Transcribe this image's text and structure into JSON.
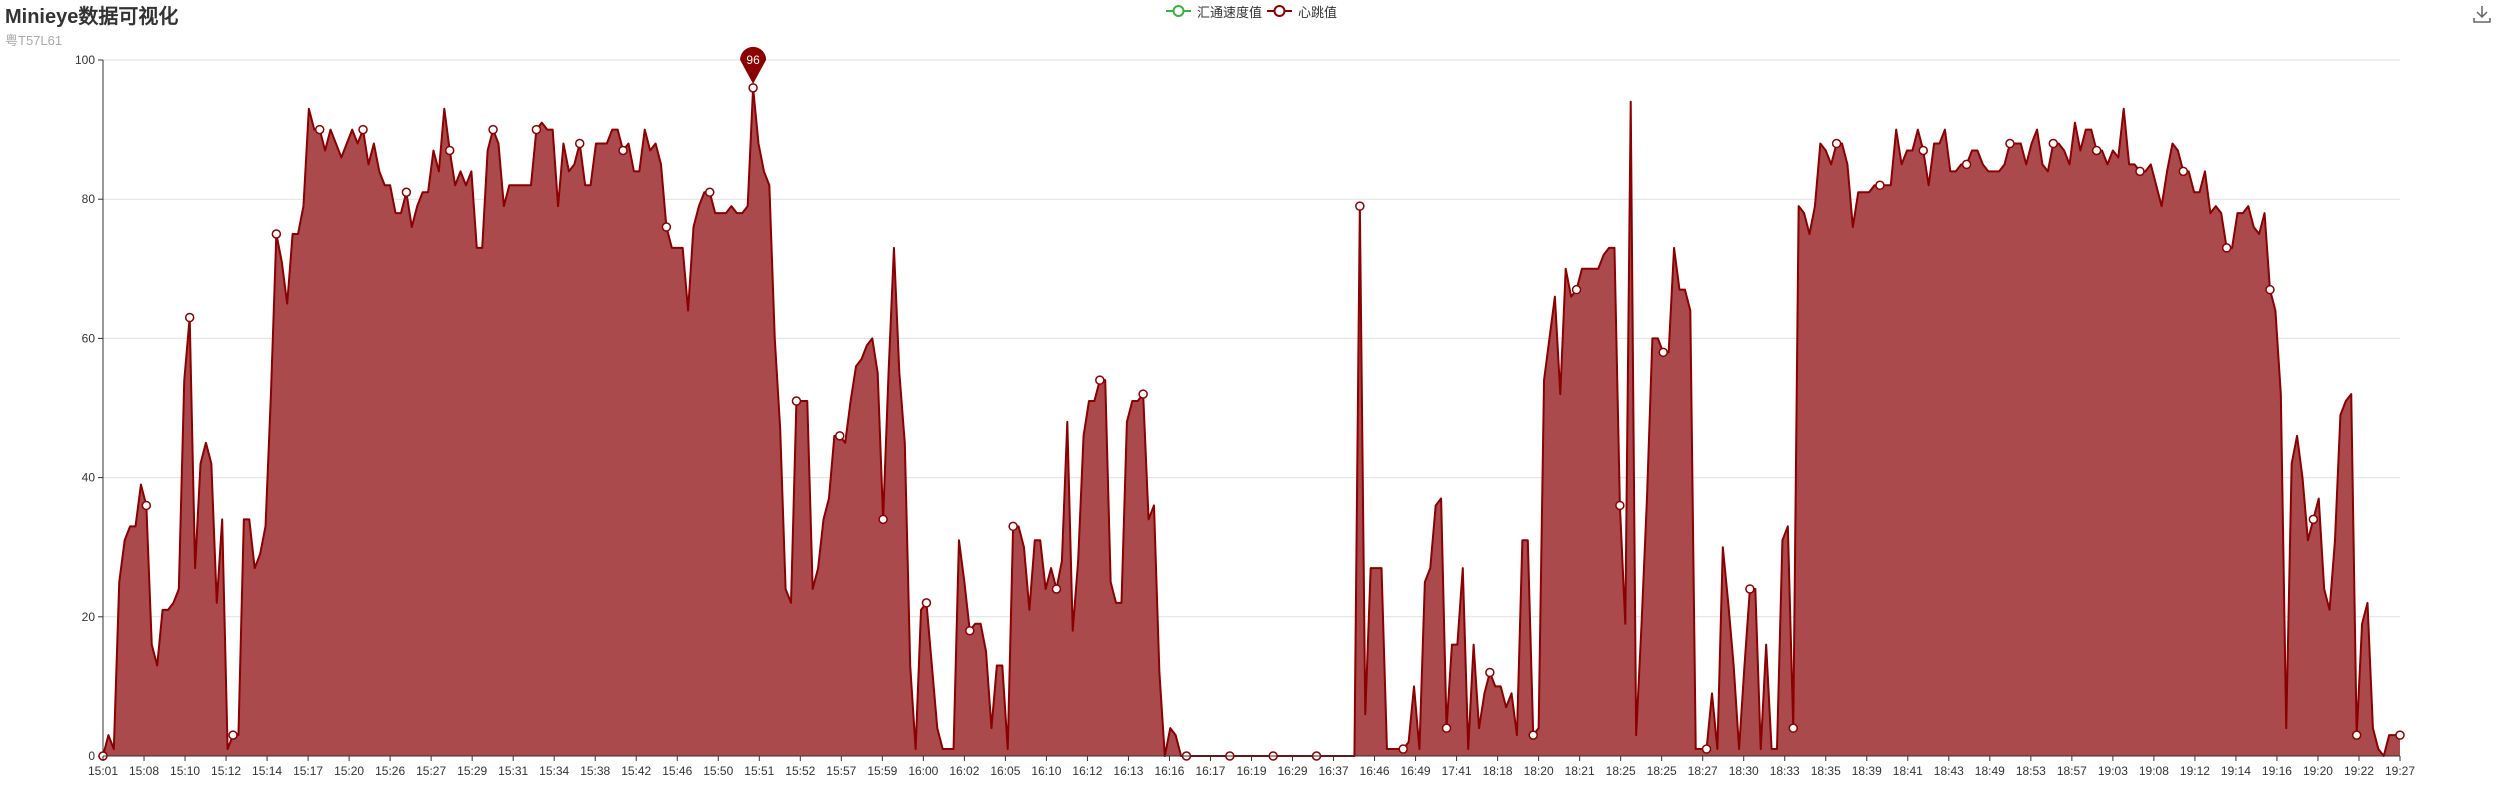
{
  "header": {
    "title": "Minieye数据可视化",
    "subtitle": "粤T57L61"
  },
  "toolbar": {
    "download_icon": "download-icon"
  },
  "chart_data": {
    "type": "area",
    "title": "Minieye数据可视化",
    "subtitle": "粤T57L61",
    "xlabel": "",
    "ylabel": "",
    "ylim": [
      0,
      100
    ],
    "yticks": [
      0,
      20,
      40,
      60,
      80,
      100
    ],
    "grid": true,
    "legend_position": "top-center",
    "x_tick_labels": [
      "15:01",
      "15:08",
      "15:10",
      "15:12",
      "15:14",
      "15:17",
      "15:20",
      "15:26",
      "15:27",
      "15:29",
      "15:31",
      "15:34",
      "15:38",
      "15:42",
      "15:46",
      "15:50",
      "15:51",
      "15:52",
      "15:57",
      "15:59",
      "16:00",
      "16:02",
      "16:05",
      "16:10",
      "16:12",
      "16:13",
      "16:16",
      "16:17",
      "16:19",
      "16:29",
      "16:37",
      "16:46",
      "16:49",
      "17:41",
      "18:18",
      "18:20",
      "18:21",
      "18:25",
      "18:25",
      "18:27",
      "18:30",
      "18:33",
      "18:35",
      "18:39",
      "18:41",
      "18:43",
      "18:49",
      "18:53",
      "18:57",
      "19:03",
      "19:08",
      "19:12",
      "19:14",
      "19:16",
      "19:20",
      "19:22",
      "19:27"
    ],
    "colors": {
      "heart": "#8b0000",
      "heart_fill": "#aa4a4c",
      "speed": "#3cb043"
    },
    "series": [
      {
        "name": "汇通速度值",
        "type": "line",
        "values": []
      },
      {
        "name": "心跳值",
        "type": "area",
        "values": [
          0,
          3,
          1,
          25,
          31,
          33,
          33,
          39,
          36,
          16,
          13,
          21,
          21,
          22,
          24,
          54,
          63,
          27,
          42,
          45,
          42,
          22,
          34,
          1,
          3,
          3,
          34,
          34,
          27,
          29,
          33,
          52,
          75,
          71,
          65,
          75,
          75,
          79,
          93,
          90,
          90,
          87,
          90,
          88,
          86,
          88,
          90,
          88,
          90,
          85,
          88,
          84,
          82,
          82,
          78,
          78,
          81,
          76,
          79,
          81,
          81,
          87,
          84,
          93,
          87,
          82,
          84,
          82,
          84,
          73,
          73,
          87,
          90,
          88,
          79,
          82,
          82,
          82,
          82,
          82,
          90,
          91,
          90,
          90,
          79,
          88,
          84,
          85,
          88,
          82,
          82,
          88,
          88,
          88,
          90,
          90,
          87,
          88,
          84,
          84,
          90,
          87,
          88,
          85,
          76,
          73,
          73,
          73,
          64,
          76,
          79,
          81,
          81,
          78,
          78,
          78,
          79,
          78,
          78,
          79,
          96,
          88,
          84,
          82,
          60,
          47,
          24,
          22,
          51,
          51,
          51,
          24,
          27,
          34,
          37,
          46,
          46,
          45,
          51,
          56,
          57,
          59,
          60,
          55,
          34,
          55,
          73,
          55,
          45,
          13,
          1,
          21,
          22,
          13,
          4,
          1,
          1,
          1,
          31,
          25,
          18,
          19,
          19,
          15,
          4,
          13,
          13,
          1,
          33,
          33,
          30,
          21,
          31,
          31,
          24,
          27,
          24,
          28,
          48,
          18,
          28,
          46,
          51,
          51,
          54,
          54,
          25,
          22,
          22,
          48,
          51,
          51,
          52,
          34,
          36,
          12,
          0,
          4,
          3,
          0,
          0,
          0,
          0,
          0,
          0,
          0,
          0,
          0,
          0,
          0,
          0,
          0,
          0,
          0,
          0,
          0,
          0,
          0,
          0,
          0,
          0,
          0,
          0,
          0,
          0,
          0,
          0,
          0,
          0,
          0,
          0,
          0,
          79,
          6,
          27,
          27,
          27,
          1,
          1,
          1,
          1,
          2,
          10,
          1,
          25,
          27,
          36,
          37,
          4,
          16,
          16,
          27,
          1,
          16,
          4,
          9,
          12,
          10,
          10,
          7,
          9,
          3,
          31,
          31,
          3,
          4,
          54,
          60,
          66,
          52,
          70,
          66,
          67,
          70,
          70,
          70,
          70,
          72,
          73,
          73,
          36,
          19,
          94,
          3,
          19,
          37,
          60,
          60,
          58,
          58,
          73,
          67,
          67,
          64,
          1,
          1,
          1,
          9,
          1,
          30,
          22,
          13,
          1,
          13,
          24,
          24,
          1,
          16,
          1,
          1,
          31,
          33,
          4,
          79,
          78,
          75,
          79,
          88,
          87,
          85,
          88,
          88,
          85,
          76,
          81,
          81,
          81,
          82,
          82,
          82,
          82,
          90,
          85,
          87,
          87,
          90,
          87,
          82,
          88,
          88,
          90,
          84,
          84,
          85,
          85,
          87,
          87,
          85,
          84,
          84,
          84,
          85,
          88,
          88,
          88,
          85,
          88,
          90,
          85,
          84,
          88,
          88,
          87,
          85,
          91,
          87,
          90,
          90,
          87,
          87,
          85,
          87,
          86,
          93,
          85,
          85,
          84,
          84,
          85,
          82,
          79,
          84,
          88,
          87,
          84,
          84,
          81,
          81,
          84,
          78,
          79,
          78,
          73,
          73,
          78,
          78,
          79,
          76,
          75,
          78,
          67,
          64,
          52,
          4,
          42,
          46,
          40,
          31,
          34,
          37,
          24,
          21,
          31,
          49,
          51,
          52,
          3,
          19,
          22,
          4,
          1,
          0,
          3,
          3,
          3
        ]
      }
    ],
    "max_marker": {
      "series": "心跳值",
      "value": 96
    }
  }
}
